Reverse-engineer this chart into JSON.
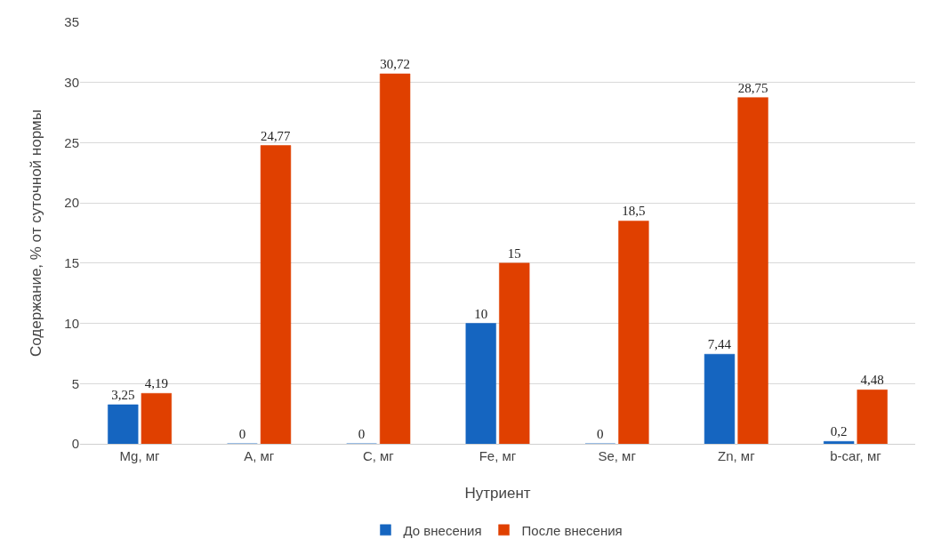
{
  "chart_data": {
    "type": "bar",
    "xlabel": "Нутриент",
    "ylabel": "Содержание, % от суточной нормы",
    "categories": [
      "Mg, мг",
      "A, мг",
      "C, мг",
      "Fe, мг",
      "Se, мг",
      "Zn, мг",
      "b-car, мг"
    ],
    "series": [
      {
        "name": "До внесения",
        "color": "#1565c0",
        "values": [
          3.25,
          0,
          0,
          10,
          0,
          7.44,
          0.2
        ],
        "value_labels": [
          "3,25",
          "0",
          "0",
          "10",
          "0",
          "7,44",
          "0,2"
        ]
      },
      {
        "name": "После внесения",
        "color": "#e04000",
        "values": [
          4.19,
          24.77,
          30.72,
          15,
          18.5,
          28.75,
          4.48
        ],
        "value_labels": [
          "4,19",
          "24,77",
          "30,72",
          "15",
          "18,5",
          "28,75",
          "4,48"
        ]
      }
    ],
    "ylim": [
      0,
      35
    ],
    "yticks": [
      0,
      5,
      10,
      15,
      20,
      25,
      30,
      35
    ],
    "grid": "y",
    "legend": "bottom"
  }
}
